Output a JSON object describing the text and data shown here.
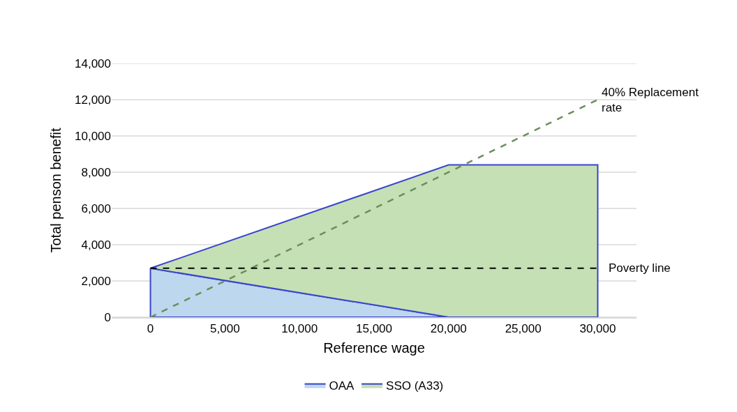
{
  "chart_data": {
    "type": "area",
    "stacked": true,
    "xlabel": "Reference wage",
    "ylabel": "Total penson benefit",
    "x": [
      0,
      20000,
      30000
    ],
    "series": [
      {
        "name": "OAA",
        "color": "#bdd7ee",
        "values": [
          2700,
          0,
          0
        ]
      },
      {
        "name": "SSO (A33)",
        "color": "#c5e0b4",
        "values": [
          0,
          8400,
          8400
        ]
      },
      {
        "name": "40% Replacement rate",
        "type": "line",
        "color": "#6b8e5a",
        "line_style": "dashed",
        "x": [
          0,
          30000
        ],
        "values": [
          0,
          12000
        ]
      }
    ],
    "ref_lines": [
      {
        "axis": "y",
        "value": 2700,
        "label": "Poverty line",
        "color": "#000000",
        "line_style": "dashed"
      }
    ],
    "xlim": [
      -2600,
      32600
    ],
    "xticks": [
      {
        "value": 0,
        "label": "0"
      },
      {
        "value": 5000,
        "label": "5,000"
      },
      {
        "value": 10000,
        "label": "10,000"
      },
      {
        "value": 15000,
        "label": "15,000"
      },
      {
        "value": 20000,
        "label": "20,000"
      },
      {
        "value": 25000,
        "label": "25,000"
      },
      {
        "value": 30000,
        "label": "30,000"
      }
    ],
    "ylim": [
      0,
      14000
    ],
    "yticks": [
      {
        "value": 0,
        "label": "0"
      },
      {
        "value": 2000,
        "label": "2,000"
      },
      {
        "value": 4000,
        "label": "4,000"
      },
      {
        "value": 6000,
        "label": "6,000"
      },
      {
        "value": 8000,
        "label": "8,000"
      },
      {
        "value": 10000,
        "label": "10,000"
      },
      {
        "value": 12000,
        "label": "12,000"
      },
      {
        "value": 14000,
        "label": "14,000"
      }
    ],
    "grid": "y",
    "legend": "bottom"
  }
}
